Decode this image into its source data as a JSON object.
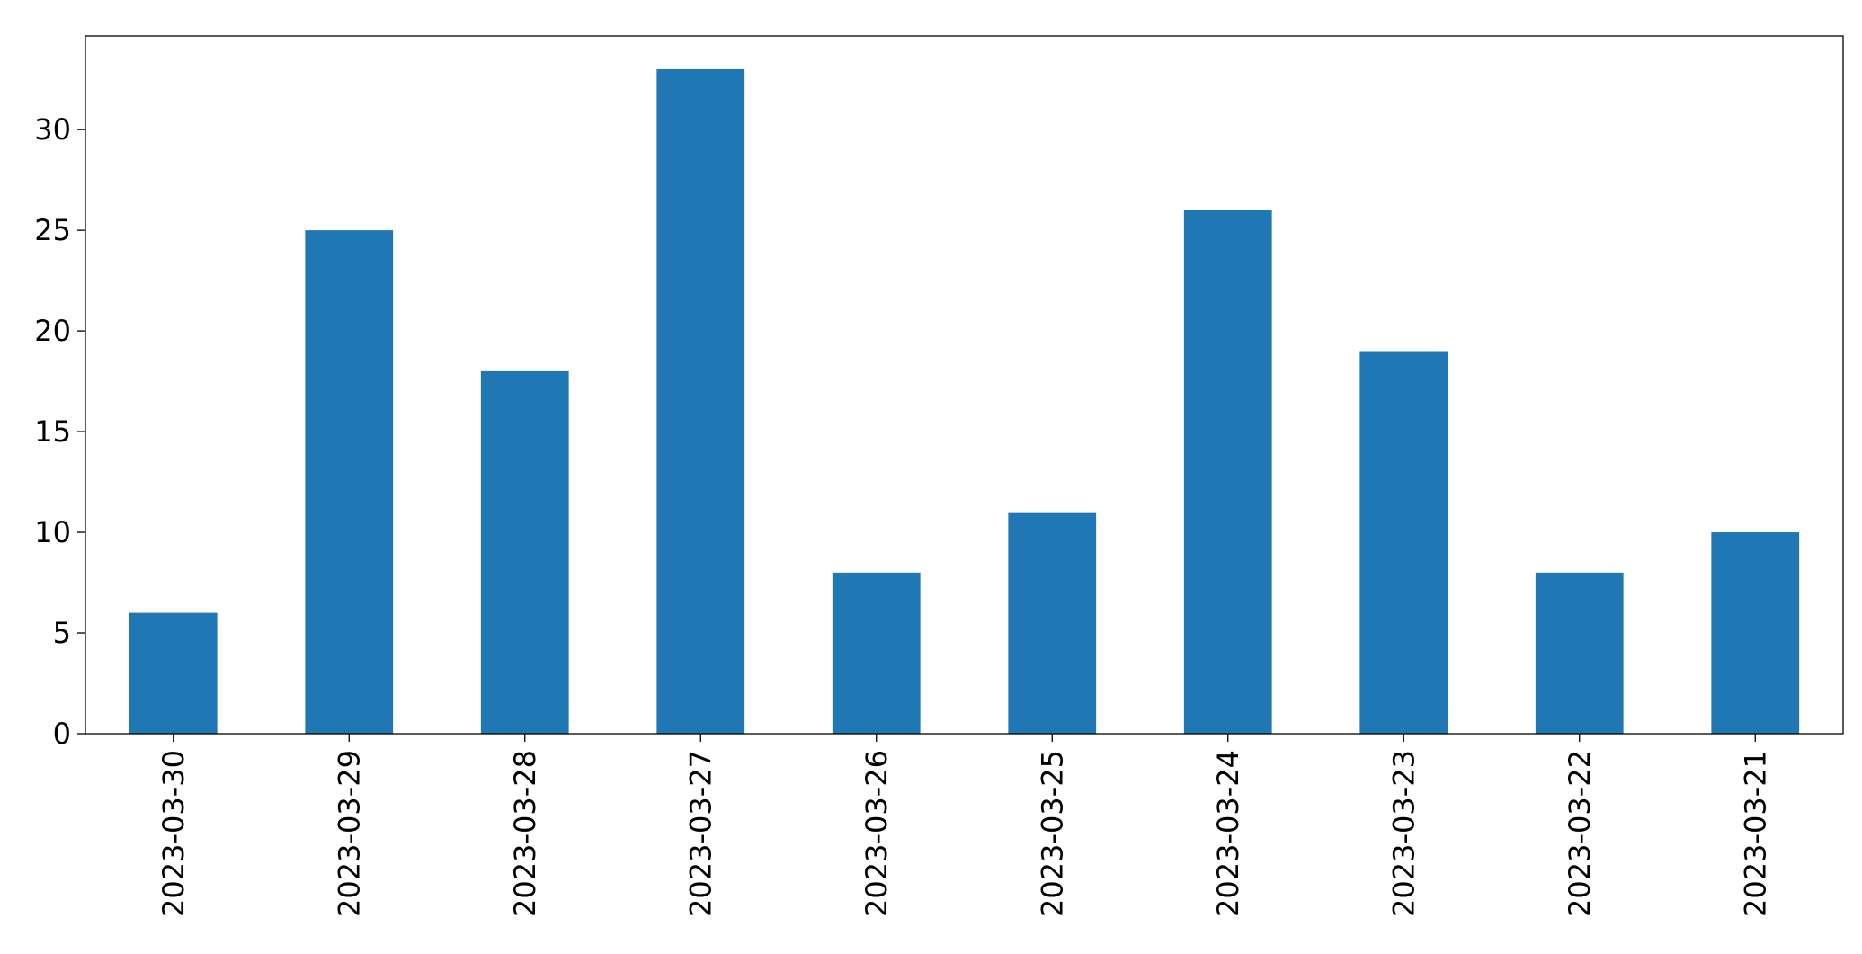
{
  "chart_data": {
    "type": "bar",
    "categories": [
      "2023-03-30",
      "2023-03-29",
      "2023-03-28",
      "2023-03-27",
      "2023-03-26",
      "2023-03-25",
      "2023-03-24",
      "2023-03-23",
      "2023-03-22",
      "2023-03-21"
    ],
    "values": [
      6,
      25,
      18,
      33,
      8,
      11,
      26,
      19,
      8,
      10
    ],
    "color": "#1f77b4",
    "ylim": [
      0,
      34.65
    ],
    "yticks": [
      0,
      5,
      10,
      15,
      20,
      25,
      30
    ],
    "grid": false
  }
}
